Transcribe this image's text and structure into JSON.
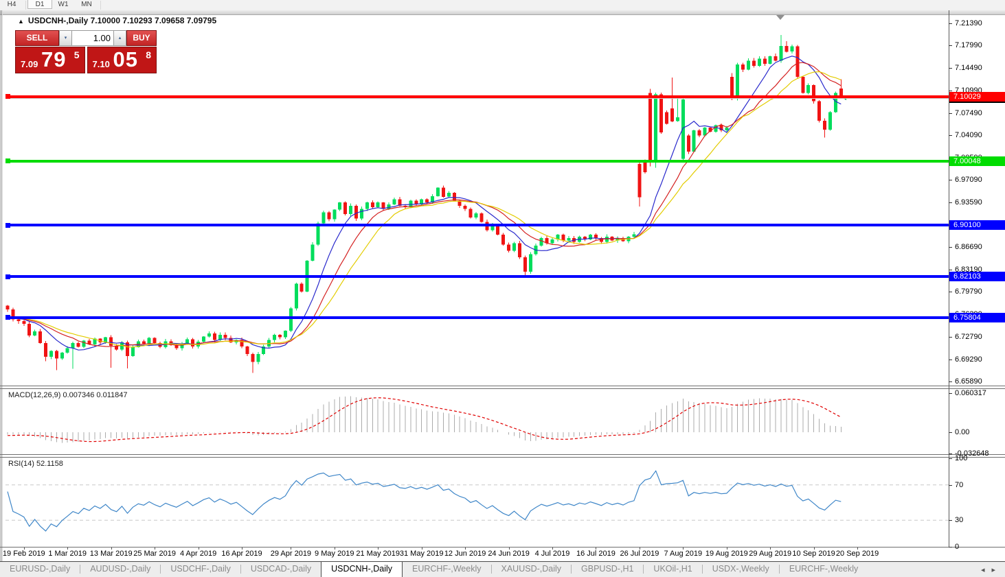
{
  "toolbar": {
    "timeframes": [
      {
        "label": "H4",
        "active": false
      },
      {
        "label": "D1",
        "active": true
      },
      {
        "label": "W1",
        "active": false
      },
      {
        "label": "MN",
        "active": false
      }
    ]
  },
  "header": {
    "symbol_period": "USDCNH-,Daily",
    "quotes": "7.10000 7.10293 7.09658 7.09795",
    "collapse_icon": "▲"
  },
  "trade_panel": {
    "sell_label": "SELL",
    "buy_label": "BUY",
    "volume": "1.00",
    "spin_down_icon": "▾",
    "spin_up_icon": "▴",
    "sell_price": {
      "small": "7.09",
      "big": "79",
      "sup": "5"
    },
    "buy_price": {
      "small": "7.10",
      "big": "05",
      "sup": "8"
    }
  },
  "indicators": {
    "macd_label": "MACD(12,26,9) 0.007346 0.011847",
    "rsi_label": "RSI(14) 52.1158"
  },
  "axis": {
    "main_labels": [
      "7.21390",
      "7.17990",
      "7.14490",
      "7.10990",
      "7.07490",
      "7.04090",
      "7.00590",
      "6.97090",
      "6.93590",
      "6.90090",
      "6.86690",
      "6.83190",
      "6.79790",
      "6.76290",
      "6.72790",
      "6.69290",
      "6.65890"
    ],
    "macd_labels": [
      {
        "text": "0.060317",
        "v": 0.060317
      },
      {
        "text": "0.00",
        "v": 0
      },
      {
        "text": "-0.032648",
        "v": -0.032648
      }
    ],
    "rsi_labels": [
      {
        "text": "100",
        "v": 100
      },
      {
        "text": "70",
        "v": 70
      },
      {
        "text": "30",
        "v": 30
      },
      {
        "text": "0",
        "v": 0
      }
    ]
  },
  "tabs": [
    {
      "label": "EURUSD-,Daily",
      "active": false
    },
    {
      "label": "AUDUSD-,Daily",
      "active": false
    },
    {
      "label": "USDCHF-,Daily",
      "active": false
    },
    {
      "label": "USDCAD-,Daily",
      "active": false
    },
    {
      "label": "USDCNH-,Daily",
      "active": true
    },
    {
      "label": "EURCHF-,Weekly",
      "active": false
    },
    {
      "label": "XAUUSD-,Daily",
      "active": false
    },
    {
      "label": "GBPUSD-,H1",
      "active": false
    },
    {
      "label": "UKOil-,H1",
      "active": false
    },
    {
      "label": "USDX-,Weekly",
      "active": false
    },
    {
      "label": "EURCHF-,Weekly",
      "active": false
    }
  ],
  "tab_scroll": {
    "left_icon": "◂",
    "right_icon": "▸"
  },
  "colors": {
    "bull": "#00dd5c",
    "bear": "#f01414",
    "ma_fast": "#2828cc",
    "ma_mid": "#d42020",
    "ma_slow": "#e3cc00",
    "macd_bar": "#ababab",
    "macd_signal": "#e00000",
    "rsi_line": "#3e86c8",
    "rsi_level": "#c8c8c8",
    "level_red": "#ff0000",
    "level_green": "#00dc00",
    "level_blue": "#0000ff",
    "current_price_line": "#c8c8c8"
  },
  "chart_data": {
    "type": "candlestick",
    "symbol": "USDCNH-",
    "timeframe": "Daily",
    "current_ohlc": {
      "open": "7.10000",
      "high": "7.10293",
      "low": "7.09658",
      "close": "7.09795"
    },
    "date_ticks": [
      {
        "label": "19 Feb 2019",
        "i": 3
      },
      {
        "label": "1 Mar 2019",
        "i": 11
      },
      {
        "label": "13 Mar 2019",
        "i": 19
      },
      {
        "label": "25 Mar 2019",
        "i": 27
      },
      {
        "label": "4 Apr 2019",
        "i": 35
      },
      {
        "label": "16 Apr 2019",
        "i": 43
      },
      {
        "label": "29 Apr 2019",
        "i": 52
      },
      {
        "label": "9 May 2019",
        "i": 60
      },
      {
        "label": "21 May 2019",
        "i": 68
      },
      {
        "label": "31 May 2019",
        "i": 76
      },
      {
        "label": "12 Jun 2019",
        "i": 84
      },
      {
        "label": "24 Jun 2019",
        "i": 92
      },
      {
        "label": "4 Jul 2019",
        "i": 100
      },
      {
        "label": "16 Jul 2019",
        "i": 108
      },
      {
        "label": "26 Jul 2019",
        "i": 116
      },
      {
        "label": "7 Aug 2019",
        "i": 124
      },
      {
        "label": "19 Aug 2019",
        "i": 132
      },
      {
        "label": "29 Aug 2019",
        "i": 140
      },
      {
        "label": "10 Sep 2019",
        "i": 148
      },
      {
        "label": "20 Sep 2019",
        "i": 156
      }
    ],
    "pre_closes": [
      6.79,
      6.788,
      6.786,
      6.785,
      6.783,
      6.782,
      6.78,
      6.779,
      6.777,
      6.776,
      6.775,
      6.773,
      6.772,
      6.771,
      6.77,
      6.769,
      6.768,
      6.767,
      6.766,
      6.766,
      6.765,
      6.764,
      6.764,
      6.763,
      6.762,
      6.762,
      6.761,
      6.76,
      6.76,
      6.759,
      6.758,
      6.758,
      6.757,
      6.757,
      6.756,
      6.756,
      6.755,
      6.754,
      6.753,
      6.752
    ],
    "closes": [
      6.77,
      6.755,
      6.752,
      6.748,
      6.73,
      6.736,
      6.718,
      6.697,
      6.706,
      6.694,
      6.703,
      6.71,
      6.718,
      6.712,
      6.722,
      6.716,
      6.725,
      6.719,
      6.727,
      6.714,
      6.708,
      6.719,
      6.698,
      6.712,
      6.721,
      6.717,
      6.726,
      6.718,
      6.712,
      6.721,
      6.715,
      6.71,
      6.717,
      6.724,
      6.713,
      6.72,
      6.728,
      6.733,
      6.723,
      6.731,
      6.726,
      6.719,
      6.723,
      6.713,
      6.701,
      6.689,
      6.701,
      6.713,
      6.723,
      6.731,
      6.727,
      6.737,
      6.772,
      6.81,
      6.798,
      6.846,
      6.871,
      6.904,
      6.921,
      6.91,
      6.925,
      6.936,
      6.918,
      6.931,
      6.911,
      6.926,
      6.936,
      6.929,
      6.936,
      6.926,
      6.933,
      6.941,
      6.931,
      6.929,
      6.939,
      6.933,
      6.941,
      6.936,
      6.946,
      6.959,
      6.945,
      6.951,
      6.939,
      6.931,
      6.926,
      6.913,
      6.919,
      6.906,
      6.893,
      6.901,
      6.886,
      6.871,
      6.861,
      6.873,
      6.851,
      6.829,
      6.856,
      6.869,
      6.881,
      6.873,
      6.879,
      6.886,
      6.877,
      6.881,
      6.875,
      6.883,
      6.879,
      6.886,
      6.881,
      6.875,
      6.883,
      6.877,
      6.881,
      6.876,
      6.883,
      6.887,
      6.944,
      6.983,
      6.998,
      7.104,
      7.045,
      7.058,
      7.062,
      7.068,
      7.096,
      7.015,
      7.048,
      7.04,
      7.052,
      7.046,
      7.056,
      7.048,
      7.052,
      7.097,
      7.15,
      7.142,
      7.156,
      7.148,
      7.159,
      7.151,
      7.163,
      7.156,
      7.179,
      7.17,
      7.178,
      7.131,
      7.106,
      7.118,
      7.093,
      7.063,
      7.049,
      7.076,
      7.106,
      7.098
    ],
    "overrides": {
      "0": {
        "o": 6.776
      },
      "7": {
        "l": 6.69
      },
      "9": {
        "l": 6.676
      },
      "12": {
        "l": 6.678
      },
      "19": {
        "l": 6.68
      },
      "22": {
        "l": 6.679
      },
      "45": {
        "l": 6.672
      },
      "95": {
        "l": 6.82
      },
      "116": {
        "o": 6.996,
        "l": 6.93
      },
      "117": {
        "o": 7.002
      },
      "118": {
        "o": 7.106,
        "h": 7.112,
        "l": 6.992
      },
      "119": {
        "l": 6.99
      },
      "121": {
        "o": 7.076
      },
      "122": {
        "o": 7.082,
        "h": 7.13
      },
      "123": {
        "h": 7.098
      },
      "124": {
        "o": 7.004,
        "l": 6.999
      },
      "125": {
        "o": 7.04
      },
      "133": {
        "o": 7.131,
        "h": 7.137
      },
      "142": {
        "h": 7.196
      },
      "143": {
        "h": 7.186
      },
      "150": {
        "l": 7.037
      },
      "153": {
        "o": 7.113,
        "h": 7.127
      }
    },
    "moving_averages": [
      {
        "period": 8,
        "color_key": "ma_fast"
      },
      {
        "period": 13,
        "color_key": "ma_mid"
      },
      {
        "period": 17,
        "color_key": "ma_slow"
      }
    ],
    "macd": {
      "fast": 12,
      "slow": 26,
      "signal": 9,
      "value": 0.007346,
      "signal_value": 0.011847,
      "max": 0.060317,
      "min": -0.032648
    },
    "rsi": {
      "period": 14,
      "value": 52.1158,
      "levels": [
        70,
        30
      ]
    },
    "levels": [
      {
        "price": 7.10029,
        "badge": "7.10029",
        "color_key": "level_red",
        "width": 4,
        "anchor": true
      },
      {
        "price": 7.09795,
        "badge": "7.09795",
        "color_key": "current_price_line",
        "badge_bg": "#000000",
        "width": 1,
        "anchor": false,
        "current": true
      },
      {
        "price": 7.00048,
        "badge": "7.00048",
        "color_key": "level_green",
        "width": 4,
        "anchor": true
      },
      {
        "price": 6.901,
        "badge": "6.90100",
        "color_key": "level_blue",
        "width": 4,
        "anchor": true
      },
      {
        "price": 6.82103,
        "badge": "6.82103",
        "color_key": "level_blue",
        "width": 4,
        "anchor": true
      },
      {
        "price": 6.75804,
        "badge": "6.75804",
        "color_key": "level_blue",
        "width": 4,
        "anchor": true
      }
    ]
  }
}
